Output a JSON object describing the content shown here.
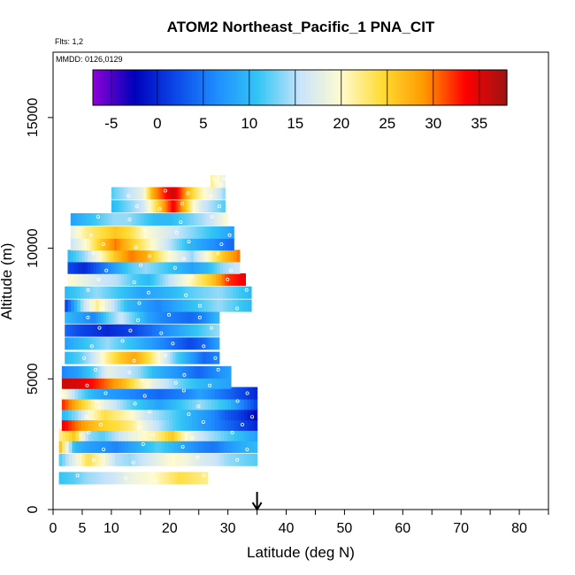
{
  "chart_data": {
    "type": "heatmap",
    "title": "ATOM2 Northeast_Pacific_1 PNA_CIT",
    "subtitle_flights": "Flts: 1,2",
    "subtitle_dates": "MMDD: 0126,0129",
    "xlabel": "Latitude (deg N)",
    "ylabel": "Altitude (m)",
    "xlim": [
      0,
      85
    ],
    "ylim": [
      0,
      17500
    ],
    "x_ticks": [
      0,
      5,
      10,
      20,
      30,
      40,
      50,
      60,
      70,
      80
    ],
    "x_minor_ticks": [
      15,
      25,
      35,
      45,
      55,
      65,
      75,
      85
    ],
    "y_ticks": [
      0,
      5000,
      10000,
      15000
    ],
    "colorbar": {
      "range": [
        -7,
        38
      ],
      "ticks": [
        -5,
        0,
        5,
        10,
        15,
        20,
        25,
        30,
        35
      ],
      "colors": [
        "#8f00d8",
        "#0000ba",
        "#0b48e8",
        "#1f8eff",
        "#34c6f4",
        "#c8e4fa",
        "#fffbd0",
        "#ffdb33",
        "#ff9900",
        "#ff0000",
        "#9c1414"
      ]
    },
    "arrow_marker_latitude": 35,
    "legend_position": "top",
    "grid": false,
    "profiles": [
      {
        "alt": 1200,
        "lat": [
          1,
          26.5
        ],
        "values": [
          11,
          12,
          14,
          15,
          16,
          18,
          19,
          20,
          22,
          24,
          23,
          22
        ]
      },
      {
        "alt": 1900,
        "lat": [
          1,
          35
        ],
        "values": [
          12,
          18,
          24,
          20,
          15,
          14,
          16,
          18,
          20,
          19,
          17,
          16,
          14,
          13,
          12
        ]
      },
      {
        "alt": 2400,
        "lat": [
          1,
          35
        ],
        "values": [
          26,
          10,
          8,
          7,
          6,
          8,
          10,
          12,
          10,
          8,
          6,
          5,
          7,
          9,
          10
        ]
      },
      {
        "alt": 2850,
        "lat": [
          1,
          35
        ],
        "values": [
          22,
          26,
          14,
          12,
          15,
          18,
          20,
          22,
          26,
          20,
          16,
          14,
          12,
          10,
          8
        ]
      },
      {
        "alt": 3250,
        "lat": [
          1.5,
          35
        ],
        "values": [
          34,
          30,
          27,
          25,
          24,
          22,
          18,
          15,
          12,
          10,
          8,
          6,
          4,
          2,
          0
        ]
      },
      {
        "alt": 3650,
        "lat": [
          1.5,
          35
        ],
        "values": [
          10,
          14,
          20,
          24,
          22,
          20,
          16,
          14,
          12,
          10,
          8,
          6,
          3,
          1,
          -2
        ]
      },
      {
        "alt": 4050,
        "lat": [
          1.5,
          35
        ],
        "values": [
          32,
          27,
          22,
          18,
          15,
          12,
          10,
          8,
          10,
          12,
          14,
          12,
          10,
          6,
          2
        ]
      },
      {
        "alt": 4450,
        "lat": [
          1.5,
          35
        ],
        "values": [
          20,
          14,
          10,
          8,
          7,
          6,
          5,
          4,
          5,
          6,
          8,
          6,
          4,
          2,
          0
        ]
      },
      {
        "alt": 4850,
        "lat": [
          1.5,
          30.5
        ],
        "values": [
          36,
          35,
          33,
          30,
          27,
          22,
          18,
          15,
          12,
          10,
          9,
          8
        ]
      },
      {
        "alt": 5250,
        "lat": [
          1.5,
          30.5
        ],
        "values": [
          6,
          8,
          12,
          18,
          16,
          14,
          10,
          8,
          6,
          4,
          6,
          8
        ]
      },
      {
        "alt": 5800,
        "lat": [
          2,
          28.5
        ],
        "values": [
          10,
          12,
          16,
          22,
          26,
          28,
          24,
          18,
          12,
          8,
          4,
          6
        ]
      },
      {
        "alt": 6350,
        "lat": [
          2,
          28.5
        ],
        "values": [
          8,
          10,
          12,
          14,
          12,
          10,
          8,
          6,
          4,
          2,
          4,
          8
        ]
      },
      {
        "alt": 6850,
        "lat": [
          2,
          28.5
        ],
        "values": [
          4,
          2,
          1,
          0,
          1,
          2,
          4,
          6,
          8,
          10,
          12,
          14
        ]
      },
      {
        "alt": 7350,
        "lat": [
          2,
          28.5
        ],
        "values": [
          10,
          8,
          6,
          12,
          16,
          12,
          8,
          6,
          5,
          4,
          6,
          10
        ]
      },
      {
        "alt": 7800,
        "lat": [
          2,
          34
        ],
        "values": [
          2,
          14,
          22,
          16,
          10,
          8,
          6,
          8,
          10,
          12,
          14,
          12,
          10
        ]
      },
      {
        "alt": 8300,
        "lat": [
          2,
          34
        ],
        "values": [
          10,
          12,
          14,
          12,
          10,
          8,
          9,
          10,
          12,
          13,
          14,
          12,
          10
        ]
      },
      {
        "alt": 8800,
        "lat": [
          2.5,
          33
        ],
        "values": [
          20,
          18,
          16,
          15,
          12,
          10,
          14,
          18,
          22,
          26,
          32,
          34
        ]
      },
      {
        "alt": 9250,
        "lat": [
          2.5,
          32
        ],
        "values": [
          2,
          0,
          4,
          8,
          12,
          14,
          12,
          10,
          8,
          10,
          14,
          16
        ]
      },
      {
        "alt": 9700,
        "lat": [
          2.5,
          32
        ],
        "values": [
          10,
          14,
          20,
          26,
          30,
          28,
          22,
          18,
          14,
          20,
          26,
          30
        ]
      },
      {
        "alt": 10150,
        "lat": [
          3,
          31
        ],
        "values": [
          16,
          20,
          26,
          30,
          26,
          22,
          18,
          14,
          10,
          8,
          6,
          4
        ]
      },
      {
        "alt": 10600,
        "lat": [
          3,
          31
        ],
        "values": [
          18,
          22,
          24,
          26,
          24,
          20,
          18,
          16,
          14,
          12,
          10,
          8
        ]
      },
      {
        "alt": 11100,
        "lat": [
          3,
          30
        ],
        "values": [
          8,
          10,
          12,
          14,
          14,
          12,
          10,
          10,
          12,
          14,
          16,
          20
        ]
      },
      {
        "alt": 11600,
        "lat": [
          10,
          29.5
        ],
        "values": [
          10,
          12,
          14,
          16,
          22,
          28,
          34,
          28,
          20,
          16,
          14,
          12
        ]
      },
      {
        "alt": 12100,
        "lat": [
          10,
          29.5
        ],
        "values": [
          12,
          14,
          16,
          18,
          28,
          32,
          36,
          30,
          24,
          20,
          18,
          14
        ]
      },
      {
        "alt": 12550,
        "lat": [
          27,
          29.5
        ],
        "values": [
          22,
          20,
          18
        ]
      }
    ]
  }
}
